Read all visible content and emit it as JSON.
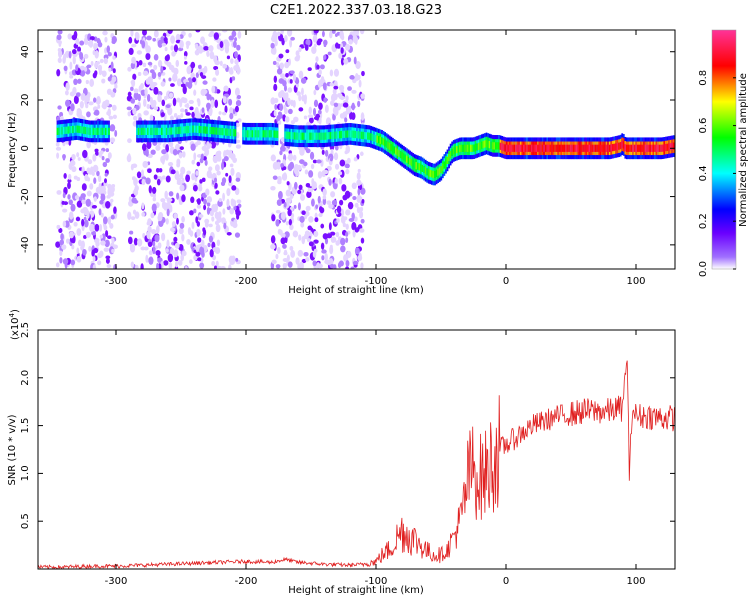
{
  "chart_data": [
    {
      "type": "heatmap",
      "title": "C2E1.2022.337.03.18.G23",
      "xlabel": "Height of straight line (km)",
      "ylabel": "Frequency (Hz)",
      "xlim": [
        -360,
        130
      ],
      "ylim": [
        -50,
        49
      ],
      "xticks": [
        -300,
        -200,
        -100,
        0,
        100
      ],
      "yticks": [
        -40,
        -20,
        0,
        20,
        40
      ],
      "colorbar": {
        "label": "Normalized spectral amplitude",
        "range": [
          0.0,
          1.0
        ],
        "ticks": [
          "0.0",
          "0.2",
          "0.4",
          "0.6",
          "0.8"
        ],
        "colormap": [
          "#ffffff",
          "#6a00ff",
          "#0000ff",
          "#00ffff",
          "#00ff00",
          "#ffff00",
          "#ff0000",
          "#ff3399"
        ]
      },
      "ridge": {
        "name": "",
        "x": [
          -345,
          -330,
          -320,
          -300,
          -280,
          -260,
          -240,
          -220,
          -200,
          -180,
          -160,
          -140,
          -120,
          -105,
          -95,
          -90,
          -85,
          -80,
          -75,
          -70,
          -65,
          -60,
          -55,
          -50,
          -45,
          -42,
          -40,
          -35,
          -30,
          -25,
          -20,
          -15,
          -10,
          -5,
          0,
          20,
          40,
          60,
          80,
          88,
          90,
          92,
          100,
          110,
          120,
          130
        ],
        "y": [
          7,
          8,
          7,
          7,
          7,
          7,
          8,
          7,
          6,
          6,
          5,
          5,
          6,
          5,
          3,
          1,
          -1,
          -3,
          -5,
          -7,
          -8,
          -10,
          -11,
          -9,
          -5,
          -2,
          -1,
          0,
          0,
          0,
          1,
          2,
          1,
          1,
          0,
          0,
          0,
          0,
          0,
          1,
          2,
          0,
          0,
          0,
          0,
          1
        ]
      },
      "noise_bands": [
        [
          -345,
          -300
        ],
        [
          -290,
          -230
        ],
        [
          -230,
          -205
        ],
        [
          -180,
          -140
        ],
        [
          -140,
          -110
        ]
      ]
    },
    {
      "type": "line",
      "title": "",
      "xlabel": "Height of straight line (km)",
      "ylabel": "SNR (10 * v/v)",
      "yscale_label": "(x10",
      "yscale_exp": "4",
      "xlim": [
        -360,
        130
      ],
      "ylim": [
        0,
        2.5
      ],
      "xticks": [
        -300,
        -200,
        -100,
        0,
        100
      ],
      "yticks": [
        "0.5",
        "1.0",
        "1.5",
        "2.0",
        "2.5"
      ],
      "color": "#e02020",
      "series": [
        {
          "name": "",
          "x": [
            -360,
            -340,
            -320,
            -300,
            -280,
            -260,
            -240,
            -220,
            -200,
            -180,
            -170,
            -160,
            -140,
            -120,
            -110,
            -100,
            -95,
            -90,
            -85,
            -80,
            -75,
            -70,
            -65,
            -60,
            -55,
            -50,
            -45,
            -40,
            -35,
            -32,
            -30,
            -28,
            -25,
            -22,
            -20,
            -15,
            -10,
            -5,
            0,
            10,
            20,
            30,
            40,
            50,
            60,
            70,
            80,
            85,
            90,
            93,
            95,
            97,
            100,
            110,
            120,
            130
          ],
          "y": [
            0.02,
            0.02,
            0.03,
            0.03,
            0.04,
            0.05,
            0.06,
            0.07,
            0.08,
            0.07,
            0.1,
            0.07,
            0.05,
            0.04,
            0.05,
            0.08,
            0.15,
            0.2,
            0.3,
            0.4,
            0.35,
            0.3,
            0.25,
            0.18,
            0.15,
            0.15,
            0.2,
            0.35,
            0.5,
            0.7,
            0.9,
            1.0,
            1.05,
            1.0,
            0.95,
            1.0,
            1.15,
            1.25,
            1.3,
            1.4,
            1.5,
            1.55,
            1.6,
            1.62,
            1.65,
            1.65,
            1.65,
            1.68,
            1.68,
            2.3,
            0.9,
            1.7,
            1.6,
            1.6,
            1.58,
            1.58
          ]
        }
      ]
    }
  ]
}
